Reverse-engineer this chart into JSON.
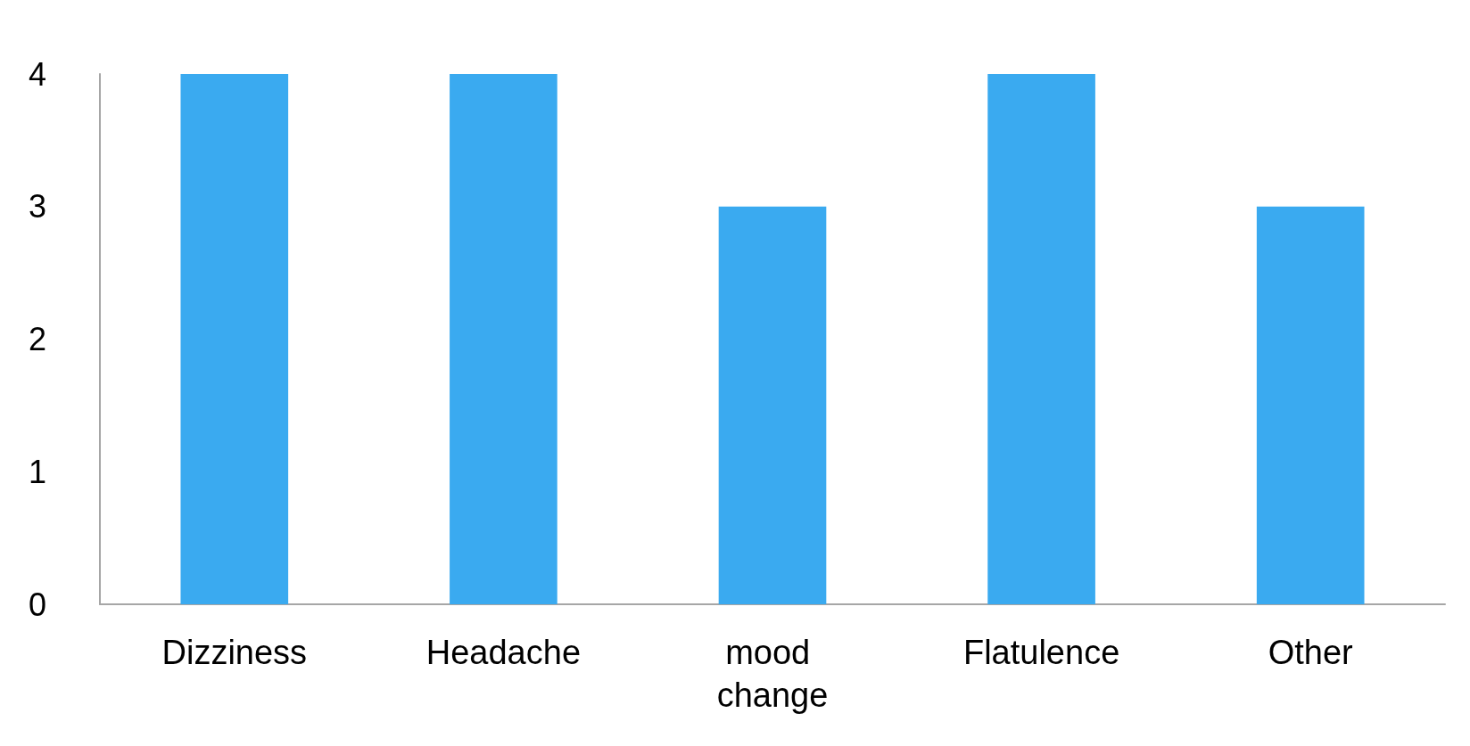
{
  "chart_data": {
    "type": "bar",
    "categories": [
      "Dizziness",
      "Headache",
      "mood change",
      "Flatulence",
      "Other"
    ],
    "values": [
      4,
      4,
      3,
      4,
      3
    ],
    "color": "#3aaaf0",
    "ylim": [
      0,
      4
    ],
    "yticks": [
      0,
      1,
      2,
      3,
      4
    ],
    "grid": false
  }
}
